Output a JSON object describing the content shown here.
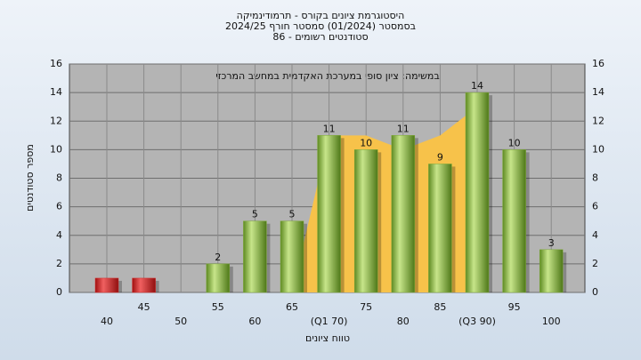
{
  "chart_data": {
    "type": "bar",
    "title": "היסטוגרמת ציונים בקורס - תרמודינמיקה",
    "subtitle": "בסמסטר  (01/2024)  סמסטר חורף 2024/25",
    "subtitle2": "סטודנטים רשומים - 86",
    "annotation": "במשימה: ציון סופי במערכת האקדמית במחשב המרכזי",
    "ylabel": "מספר סטודנטים",
    "xlabel": "טווח ציונים",
    "categories": [
      "40",
      "45",
      "50",
      "55",
      "60",
      "65",
      "(Q1 70)",
      "75",
      "80",
      "85",
      "(Q3 90)",
      "95",
      "100"
    ],
    "series": [
      {
        "color": "#d42a2a",
        "labels": false,
        "values": [
          1,
          1,
          null,
          null,
          null,
          null,
          null,
          null,
          null,
          null,
          null,
          null,
          null
        ]
      },
      {
        "color": "#7faa3a",
        "labels": true,
        "values": [
          null,
          null,
          0,
          2,
          5,
          5,
          11,
          10,
          11,
          9,
          14,
          10,
          3
        ]
      }
    ],
    "area": {
      "color": "#f7c24a",
      "values": [
        null,
        null,
        null,
        null,
        null,
        0,
        11,
        11,
        10,
        11,
        13,
        null,
        null
      ]
    },
    "ylim": [
      0,
      16
    ],
    "yticks": [
      0,
      2,
      4,
      6,
      8,
      10,
      12,
      14,
      16
    ],
    "grid": true
  }
}
